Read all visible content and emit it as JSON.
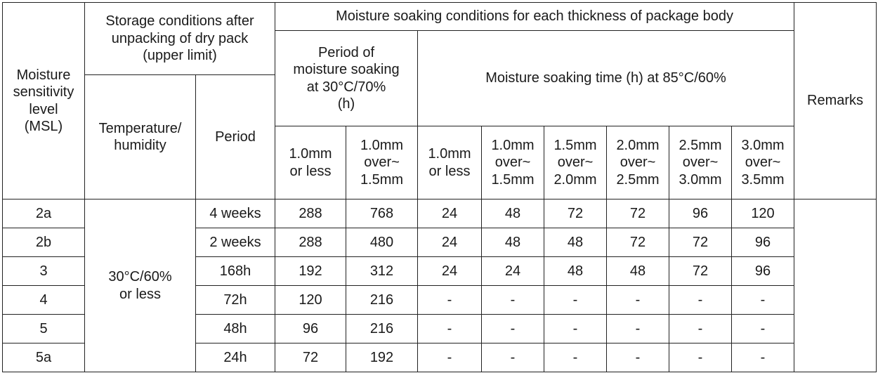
{
  "headers": {
    "msl": "Moisture\nsensitivity\nlevel\n(MSL)",
    "storage_group": "Storage conditions after\nunpacking of dry pack\n(upper limit)",
    "soaking_group": "Moisture soaking conditions for each thickness of package body",
    "period_30": "Period of\nmoisture soaking\nat 30°C/70%\n(h)",
    "time_85": "Moisture soaking time (h) at 85°C/60%",
    "remarks": "Remarks",
    "temp_humidity": "Temperature/\nhumidity",
    "period": "Period",
    "thickness_30": [
      "1.0mm\nor less",
      "1.0mm\nover~\n1.5mm"
    ],
    "thickness_85": [
      "1.0mm\nor less",
      "1.0mm\nover~\n1.5mm",
      "1.5mm\nover~\n2.0mm",
      "2.0mm\nover~\n2.5mm",
      "2.5mm\nover~\n3.0mm",
      "3.0mm\nover~\n3.5mm"
    ]
  },
  "storage_condition": "30°C/60%\nor less",
  "rows": [
    {
      "msl": "2a",
      "period": "4 weeks",
      "p30": [
        "288",
        "768"
      ],
      "p85": [
        "24",
        "48",
        "72",
        "72",
        "96",
        "120"
      ]
    },
    {
      "msl": "2b",
      "period": "2 weeks",
      "p30": [
        "288",
        "480"
      ],
      "p85": [
        "24",
        "48",
        "48",
        "72",
        "72",
        "96"
      ]
    },
    {
      "msl": "3",
      "period": "168h",
      "p30": [
        "192",
        "312"
      ],
      "p85": [
        "24",
        "24",
        "48",
        "48",
        "72",
        "96"
      ]
    },
    {
      "msl": "4",
      "period": "72h",
      "p30": [
        "120",
        "216"
      ],
      "p85": [
        "-",
        "-",
        "-",
        "-",
        "-",
        "-"
      ]
    },
    {
      "msl": "5",
      "period": "48h",
      "p30": [
        "96",
        "216"
      ],
      "p85": [
        "-",
        "-",
        "-",
        "-",
        "-",
        "-"
      ]
    },
    {
      "msl": "5a",
      "period": "24h",
      "p30": [
        "72",
        "192"
      ],
      "p85": [
        "-",
        "-",
        "-",
        "-",
        "-",
        "-"
      ]
    }
  ]
}
